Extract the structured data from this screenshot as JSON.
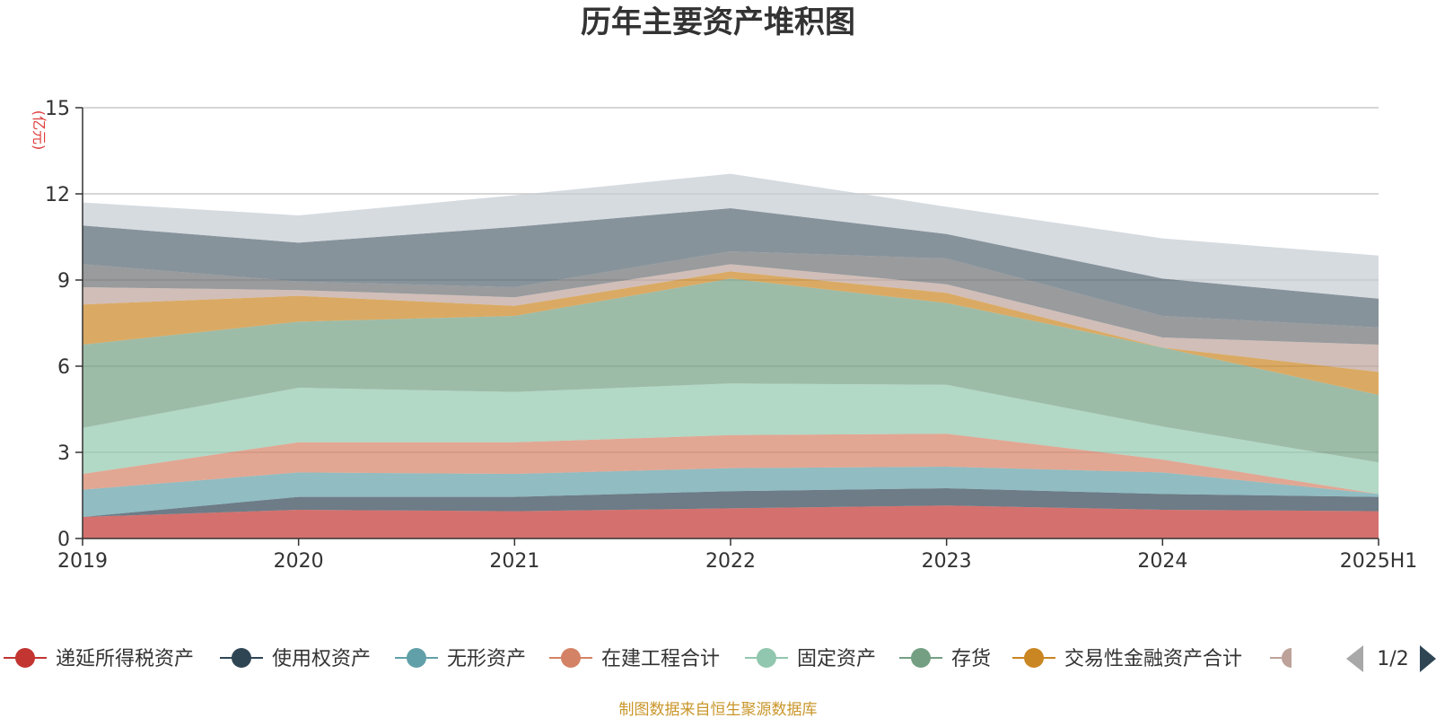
{
  "chart_data": {
    "type": "area",
    "stacked": true,
    "title": "历年主要资产堆积图",
    "unit": "(亿元)",
    "source": "制图数据来自恒生聚源数据库",
    "categories": [
      "2019",
      "2020",
      "2021",
      "2022",
      "2023",
      "2024",
      "2025H1"
    ],
    "ylim": [
      0,
      15
    ],
    "yticks": [
      0,
      3,
      6,
      9,
      12,
      15
    ],
    "grid": true,
    "series": [
      {
        "name": "递延所得税资产",
        "color": "#c23531",
        "values": [
          0.75,
          1.0,
          0.95,
          1.05,
          1.15,
          1.0,
          0.95
        ]
      },
      {
        "name": "使用权资产",
        "color": "#2f4554",
        "values": [
          0.0,
          0.45,
          0.5,
          0.6,
          0.6,
          0.55,
          0.5
        ]
      },
      {
        "name": "无形资产",
        "color": "#61a0a8",
        "values": [
          0.95,
          0.85,
          0.8,
          0.8,
          0.75,
          0.75,
          0.1
        ]
      },
      {
        "name": "在建工程合计",
        "color": "#d48265",
        "values": [
          0.55,
          1.05,
          1.1,
          1.15,
          1.15,
          0.45,
          0.0
        ]
      },
      {
        "name": "固定资产",
        "color": "#91c7ae",
        "values": [
          1.6,
          1.9,
          1.75,
          1.8,
          1.7,
          1.15,
          1.1
        ]
      },
      {
        "name": "存货",
        "color": "#749f83",
        "values": [
          2.9,
          2.3,
          2.65,
          3.65,
          2.85,
          2.75,
          2.35
        ]
      },
      {
        "name": "交易性金融资产合计",
        "color": "#ca8622",
        "values": [
          1.4,
          0.9,
          0.35,
          0.25,
          0.35,
          0.0,
          0.8
        ]
      },
      {
        "name": "",
        "color": "#bda29a",
        "values": [
          0.6,
          0.2,
          0.3,
          0.25,
          0.3,
          0.35,
          0.95
        ]
      },
      {
        "name": "",
        "color": "#6e7074",
        "values": [
          0.8,
          0.3,
          0.35,
          0.45,
          0.9,
          0.75,
          0.6
        ]
      },
      {
        "name": "",
        "color": "#546570",
        "values": [
          1.35,
          1.35,
          2.1,
          1.5,
          0.85,
          1.3,
          1.0
        ]
      },
      {
        "name": "",
        "color": "#c4ccd3",
        "values": [
          0.8,
          0.95,
          1.1,
          1.2,
          0.95,
          1.4,
          1.5
        ]
      }
    ],
    "legend": {
      "position": "bottom",
      "visible_count": 8,
      "page": "1/2"
    }
  }
}
